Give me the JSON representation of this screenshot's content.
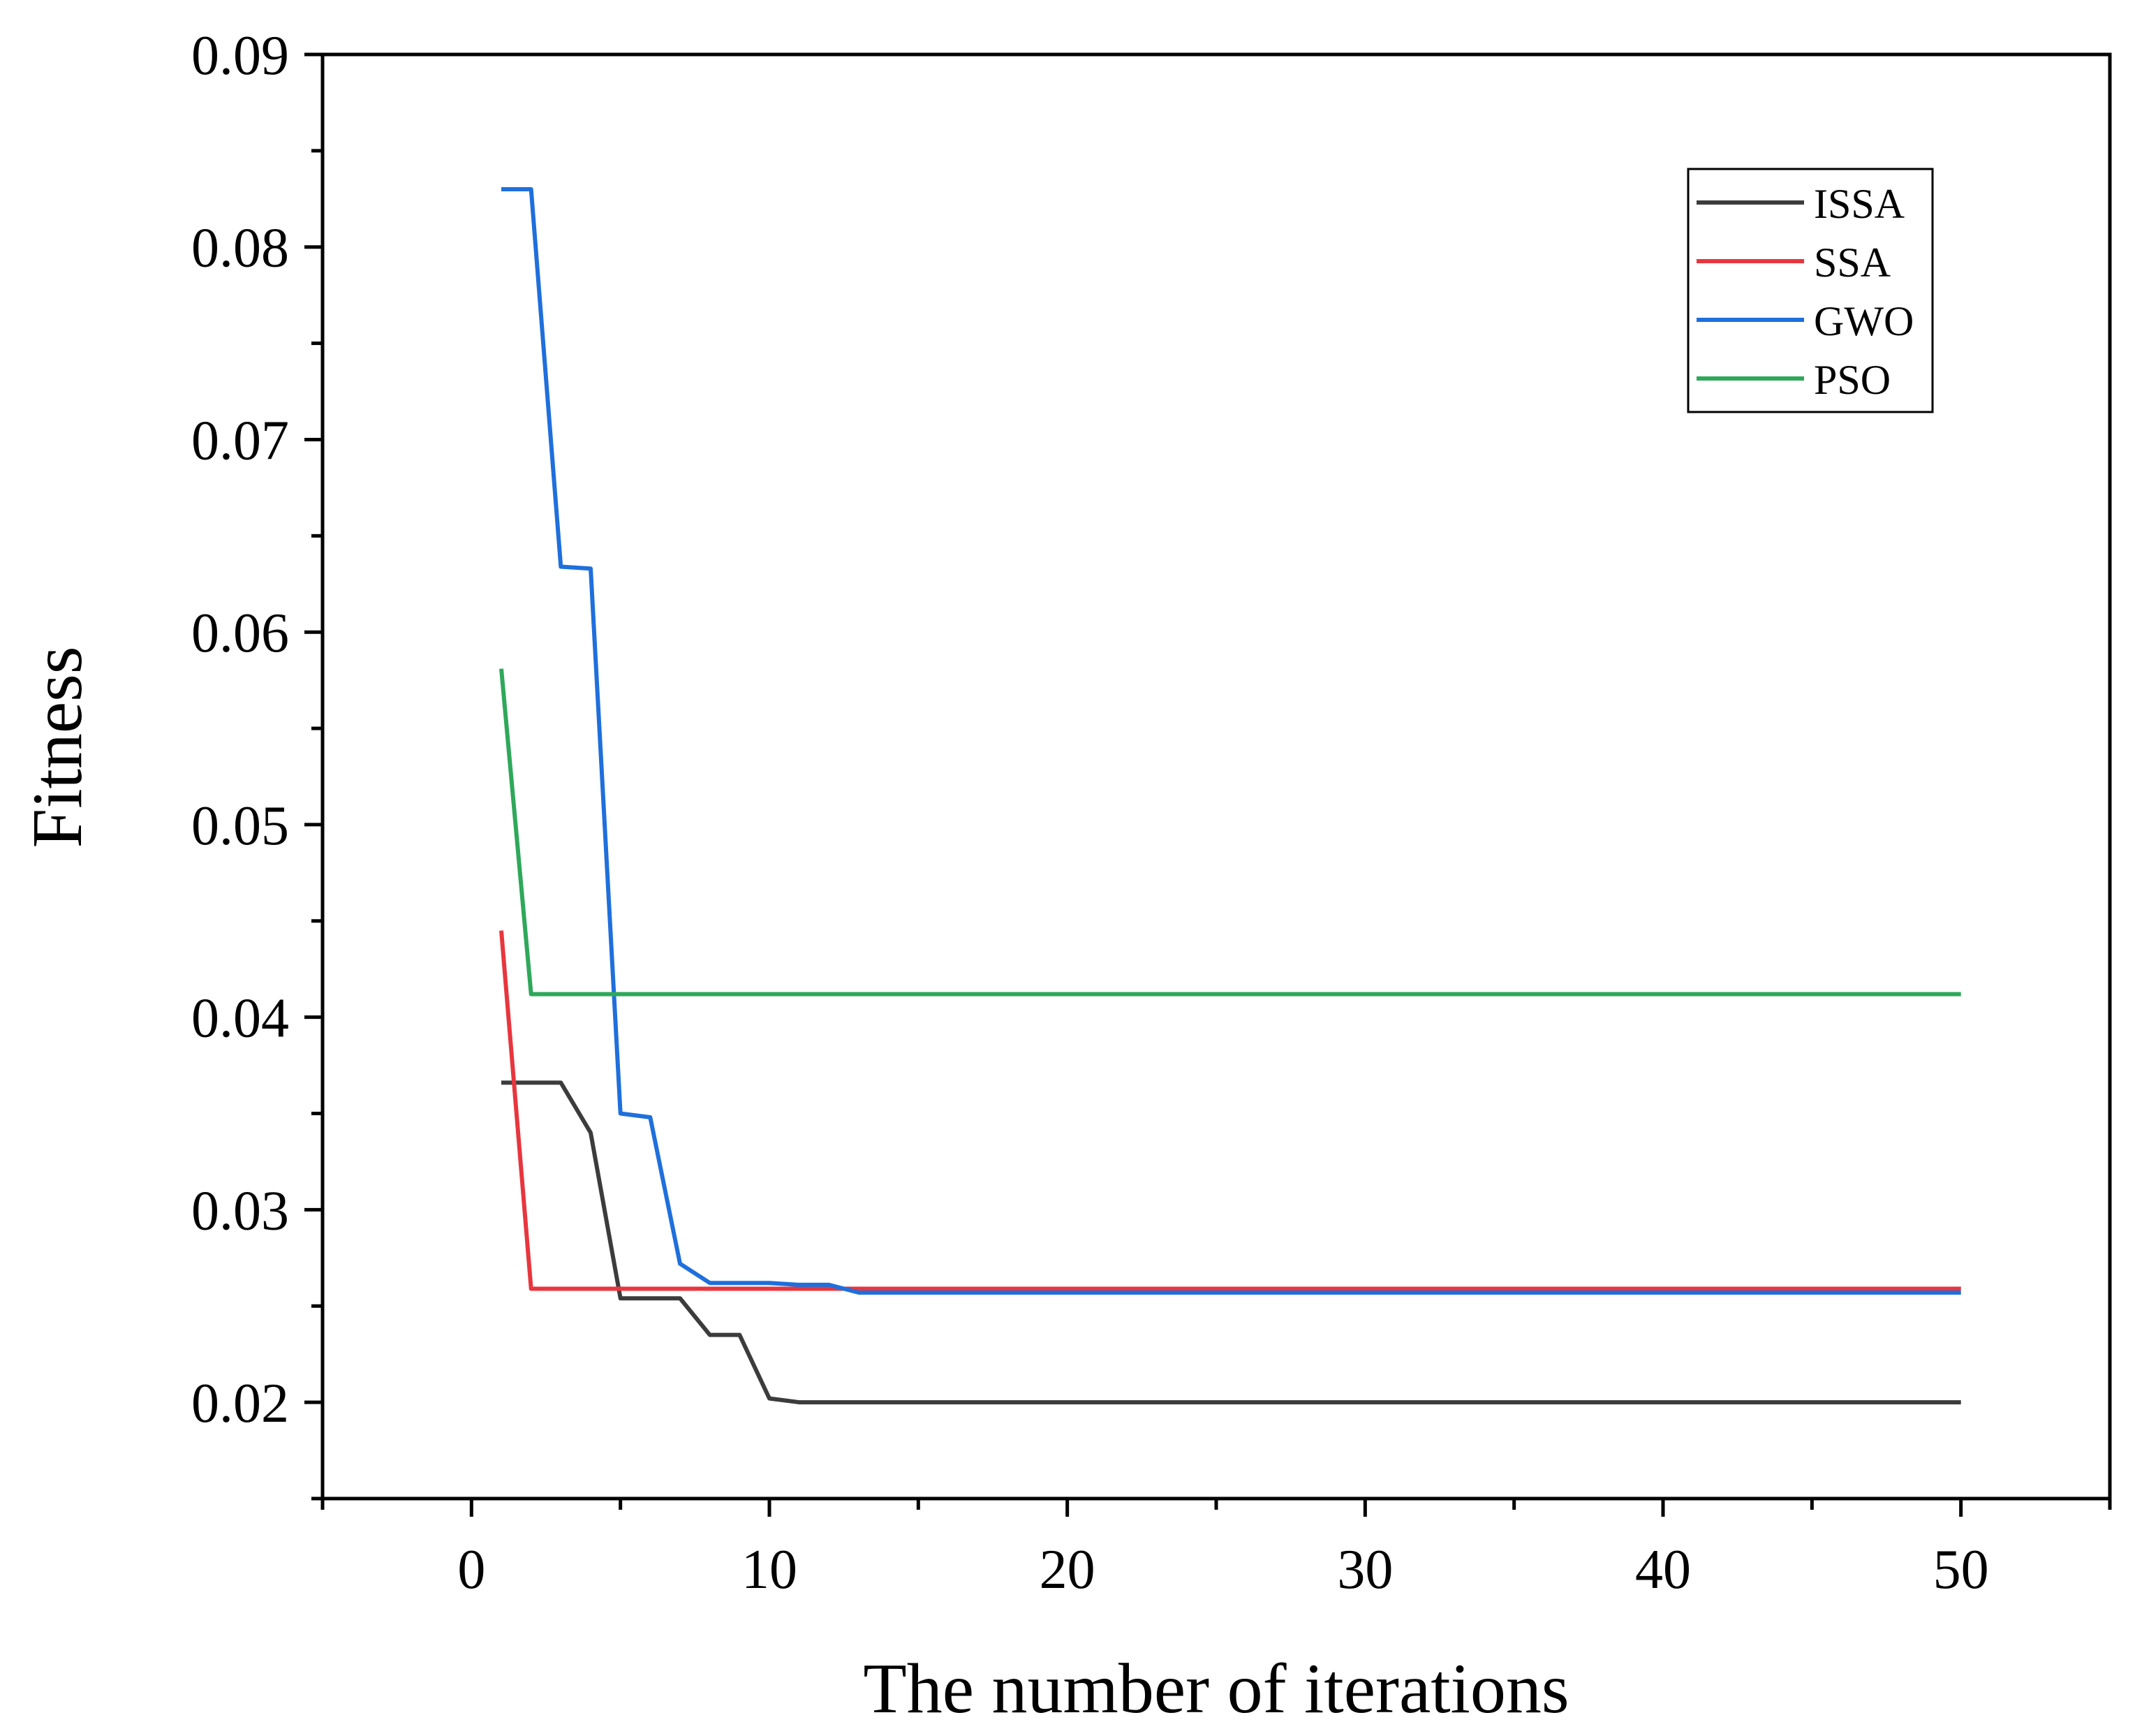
{
  "chart_data": {
    "type": "line",
    "title": "",
    "xlabel": "The number of iterations",
    "ylabel": "Fitness",
    "xlim": [
      -5,
      55
    ],
    "ylim": [
      0.015,
      0.09
    ],
    "xticks": [
      0,
      10,
      20,
      30,
      40,
      50
    ],
    "xtick_labels": [
      "0",
      "10",
      "20",
      "30",
      "40",
      "50"
    ],
    "yticks": [
      0.02,
      0.03,
      0.04,
      0.05,
      0.06,
      0.07,
      0.08,
      0.09
    ],
    "ytick_labels": [
      "0.02",
      "0.03",
      "0.04",
      "0.05",
      "0.06",
      "0.07",
      "0.08",
      "0.09"
    ],
    "grid": false,
    "legend_position": "top-right",
    "series": [
      {
        "name": "ISSA",
        "color": "#3c3c3c",
        "points": [
          [
            1,
            0.0366
          ],
          [
            2,
            0.0366
          ],
          [
            3,
            0.0366
          ],
          [
            4,
            0.034
          ],
          [
            5,
            0.0254
          ],
          [
            6,
            0.0254
          ],
          [
            7,
            0.0254
          ],
          [
            8,
            0.0235
          ],
          [
            9,
            0.0235
          ],
          [
            10,
            0.0202
          ],
          [
            11,
            0.02
          ],
          [
            50,
            0.02
          ]
        ]
      },
      {
        "name": "SSA",
        "color": "#e8363e",
        "points": [
          [
            1,
            0.0445
          ],
          [
            2,
            0.0259
          ],
          [
            50,
            0.0259
          ]
        ]
      },
      {
        "name": "GWO",
        "color": "#1f6fdc",
        "points": [
          [
            1,
            0.083
          ],
          [
            2,
            0.083
          ],
          [
            3,
            0.0634
          ],
          [
            4,
            0.0633
          ],
          [
            5,
            0.035
          ],
          [
            6,
            0.0348
          ],
          [
            7,
            0.0272
          ],
          [
            8,
            0.0262
          ],
          [
            10,
            0.0262
          ],
          [
            11,
            0.0261
          ],
          [
            12,
            0.0261
          ],
          [
            13,
            0.0257
          ],
          [
            50,
            0.0257
          ]
        ]
      },
      {
        "name": "PSO",
        "color": "#2ea85a",
        "points": [
          [
            1,
            0.0581
          ],
          [
            2,
            0.0412
          ],
          [
            50,
            0.0412
          ]
        ]
      }
    ]
  }
}
